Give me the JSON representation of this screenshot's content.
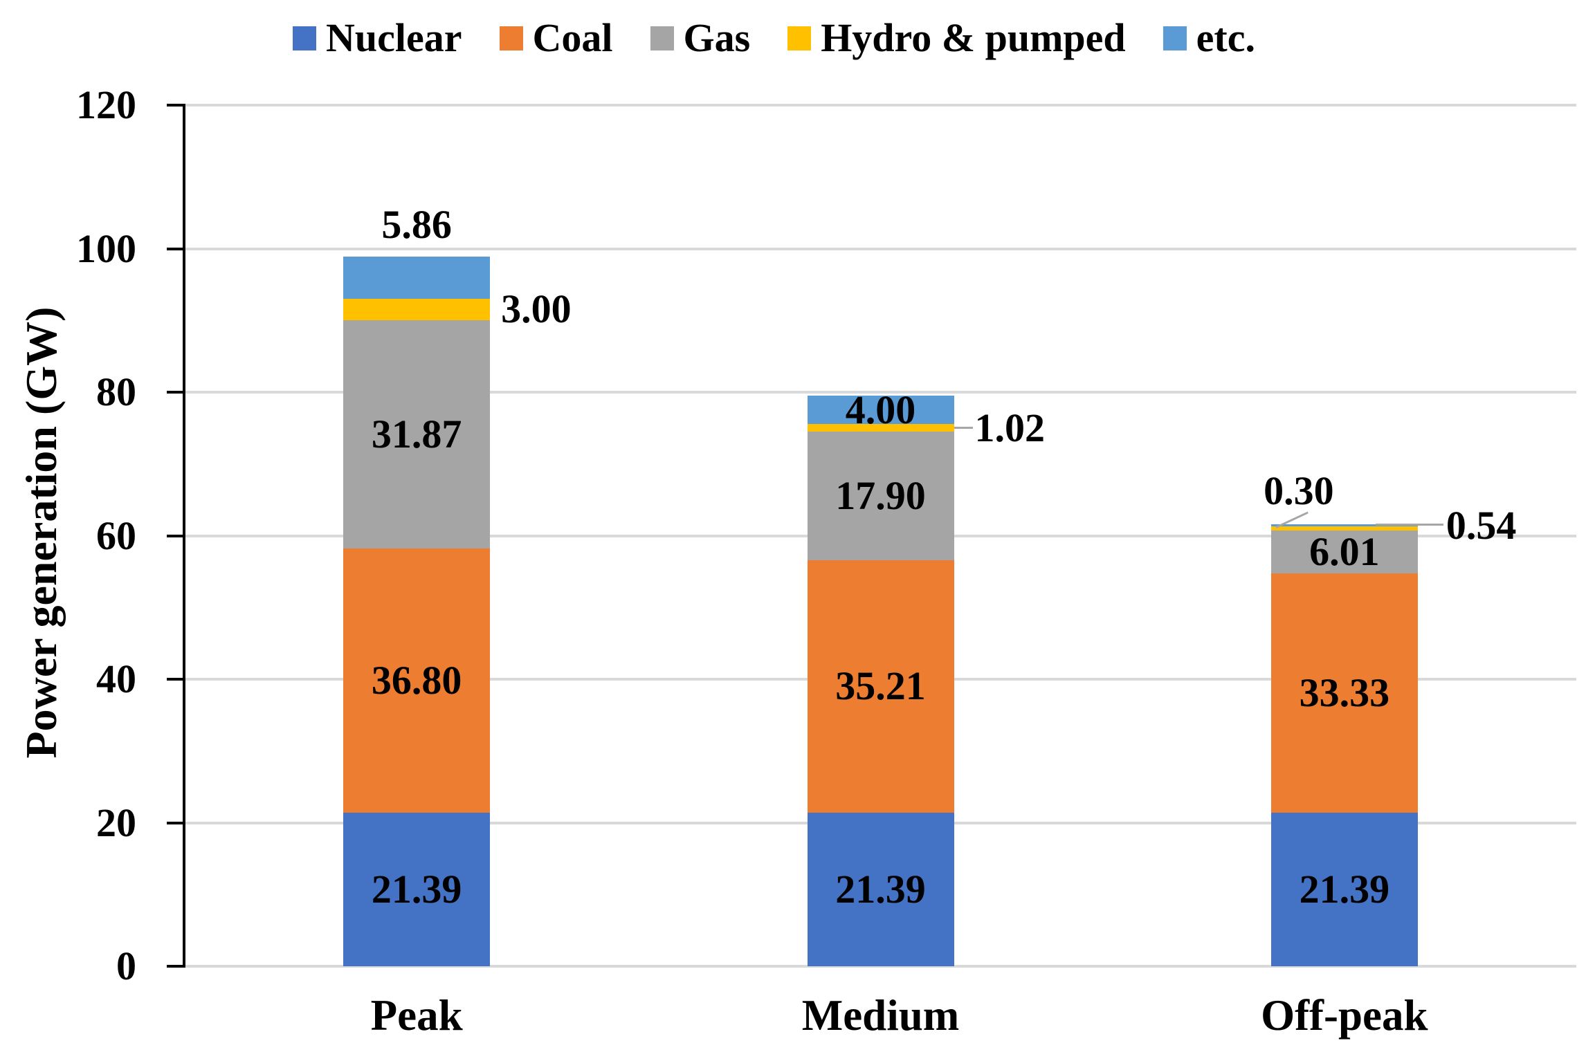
{
  "chart_data": {
    "type": "bar",
    "stacked": true,
    "title": "",
    "categories": [
      "Peak",
      "Medium",
      "Off-peak"
    ],
    "series": [
      {
        "name": "Nuclear",
        "color": "#4472C4",
        "values": [
          21.39,
          21.39,
          21.39
        ],
        "labels": [
          "21.39",
          "21.39",
          "21.39"
        ],
        "label_placement": [
          "inside",
          "inside",
          "inside"
        ]
      },
      {
        "name": "Coal",
        "color": "#ED7D31",
        "values": [
          36.8,
          35.21,
          33.33
        ],
        "labels": [
          "36.80",
          "35.21",
          "33.33"
        ],
        "label_placement": [
          "inside",
          "inside",
          "inside"
        ]
      },
      {
        "name": "Gas",
        "color": "#A5A5A5",
        "values": [
          31.87,
          17.9,
          6.01
        ],
        "labels": [
          "31.87",
          "17.90",
          "6.01"
        ],
        "label_placement": [
          "inside",
          "inside",
          "inside"
        ]
      },
      {
        "name": "Hydro & pumped",
        "color": "#FFC000",
        "values": [
          3.0,
          1.02,
          0.54
        ],
        "labels": [
          "3.00",
          "1.02",
          "0.54"
        ],
        "label_placement": [
          "right",
          "right-leader",
          "right-leader-long"
        ]
      },
      {
        "name": "etc.",
        "color": "#5B9BD5",
        "values": [
          5.86,
          4.0,
          0.3
        ],
        "labels": [
          "5.86",
          "4.00",
          "0.30"
        ],
        "label_placement": [
          "above",
          "inside",
          "above-leader"
        ]
      }
    ],
    "xlabel": "",
    "ylabel": "Power generation (GW)",
    "ylim": [
      0,
      120
    ],
    "yticks": [
      "0",
      "20",
      "40",
      "60",
      "80",
      "100",
      "120"
    ],
    "grid": true,
    "legend_position": "top"
  },
  "colors": {
    "background": "#FFFFFF",
    "gridline": "#D9D9D9",
    "axis": "#000000",
    "leader_line": "#A6A6A6",
    "text": "#000000"
  }
}
